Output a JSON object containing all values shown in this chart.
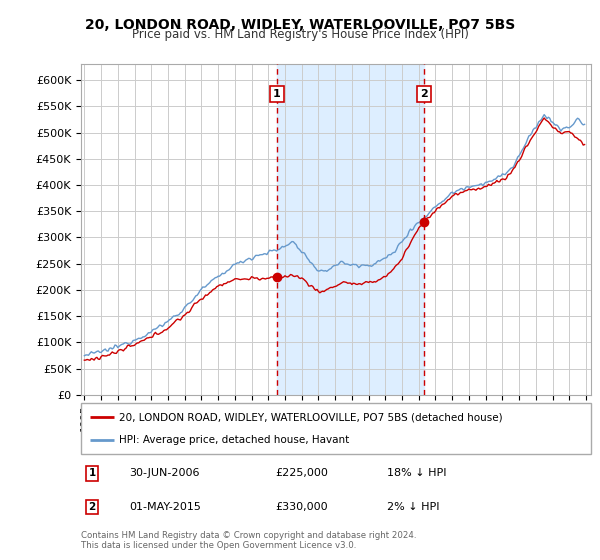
{
  "title1": "20, LONDON ROAD, WIDLEY, WATERLOOVILLE, PO7 5BS",
  "title2": "Price paid vs. HM Land Registry's House Price Index (HPI)",
  "ylim": [
    0,
    630000
  ],
  "xlim_start": 1994.8,
  "xlim_end": 2025.3,
  "sale1_date": 2006.5,
  "sale1_price": 225000,
  "sale1_label": "1",
  "sale2_date": 2015.33,
  "sale2_price": 330000,
  "sale2_label": "2",
  "legend_line1": "20, LONDON ROAD, WIDLEY, WATERLOOVILLE, PO7 5BS (detached house)",
  "legend_line2": "HPI: Average price, detached house, Havant",
  "info1_label": "1",
  "info1_date": "30-JUN-2006",
  "info1_price": "£225,000",
  "info1_hpi": "18% ↓ HPI",
  "info2_label": "2",
  "info2_date": "01-MAY-2015",
  "info2_price": "£330,000",
  "info2_hpi": "2% ↓ HPI",
  "footnote": "Contains HM Land Registry data © Crown copyright and database right 2024.\nThis data is licensed under the Open Government Licence v3.0.",
  "line_red_color": "#cc0000",
  "line_blue_color": "#6699cc",
  "shade_color": "#ddeeff",
  "background_color": "#ffffff",
  "grid_color": "#cccccc"
}
